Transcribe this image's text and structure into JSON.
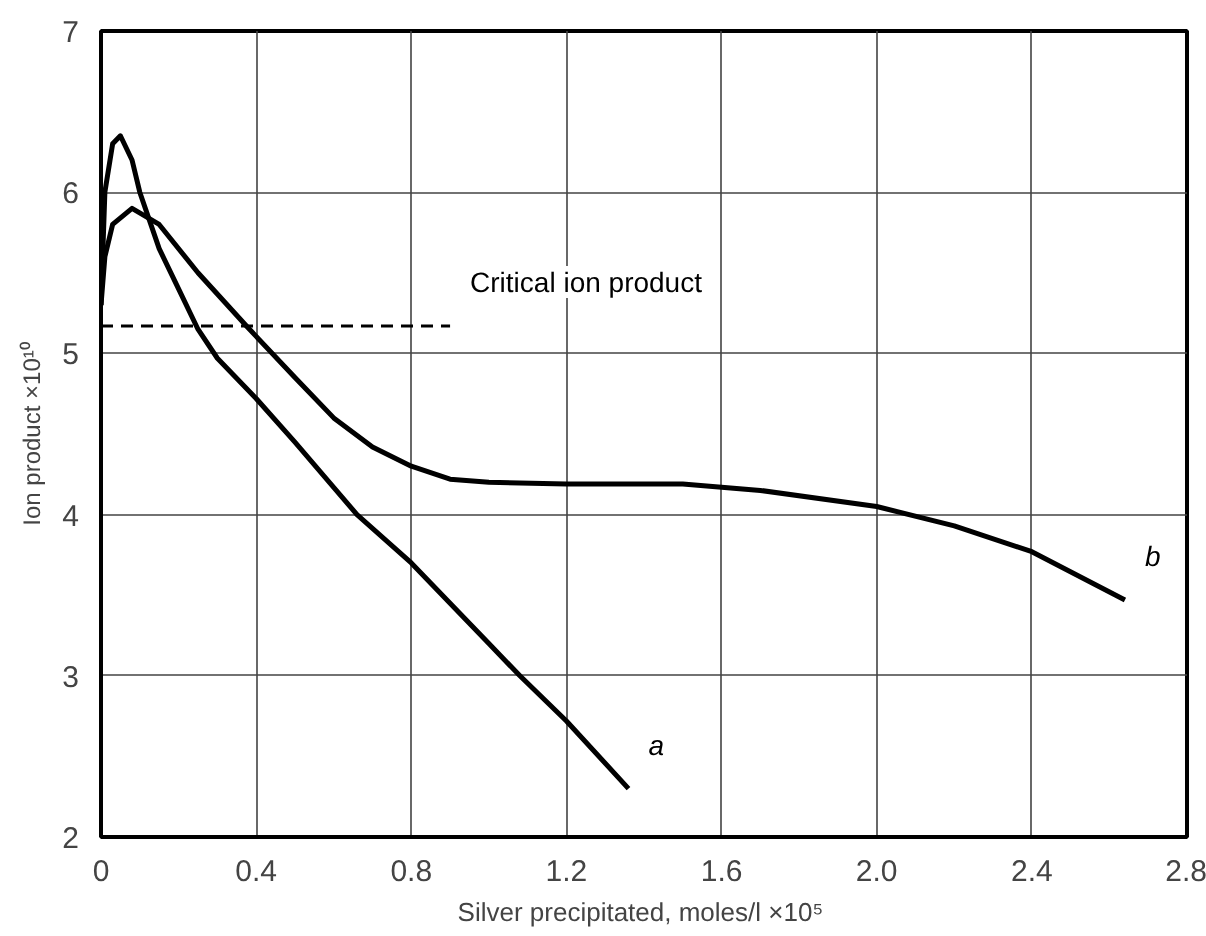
{
  "chart_data": {
    "type": "line",
    "xlabel": "Silver precipitated,  moles/l ×10⁵",
    "ylabel": "Ion product ×10¹⁰",
    "xlim": [
      0,
      2.8
    ],
    "ylim": [
      2,
      7
    ],
    "xticks": [
      0,
      0.4,
      0.8,
      1.2,
      1.6,
      {
        "value": 2,
        "label": "2.0"
      },
      2.4,
      2.8
    ],
    "yticks": [
      2,
      3,
      4,
      5,
      6,
      7
    ],
    "grid": true,
    "line_style": "solid",
    "series": [
      {
        "name": "a",
        "color": "#000000",
        "x": [
          0,
          0.01,
          0.03,
          0.05,
          0.08,
          0.1,
          0.15,
          0.2,
          0.25,
          0.3,
          0.4,
          0.5,
          0.66,
          0.8,
          1.0,
          1.08,
          1.2,
          1.36
        ],
        "values": [
          5.3,
          6.0,
          6.3,
          6.35,
          6.2,
          6.0,
          5.65,
          5.4,
          5.15,
          4.97,
          4.72,
          4.45,
          4.0,
          3.7,
          3.2,
          3.0,
          2.72,
          2.3
        ]
      },
      {
        "name": "b",
        "color": "#000000",
        "x": [
          0,
          0.01,
          0.03,
          0.08,
          0.15,
          0.25,
          0.375,
          0.5,
          0.6,
          0.7,
          0.8,
          0.9,
          1.0,
          1.2,
          1.5,
          1.7,
          2.0,
          2.2,
          2.4,
          2.64
        ],
        "values": [
          5.3,
          5.6,
          5.8,
          5.9,
          5.8,
          5.5,
          5.17,
          4.85,
          4.6,
          4.42,
          4.3,
          4.22,
          4.2,
          4.19,
          4.19,
          4.15,
          4.05,
          3.93,
          3.77,
          3.47
        ]
      },
      {
        "name": "Critical ion product",
        "color": "#000000",
        "line_style": "dashed",
        "x": [
          0,
          0.9
        ],
        "values": [
          5.17,
          5.17
        ]
      }
    ]
  }
}
